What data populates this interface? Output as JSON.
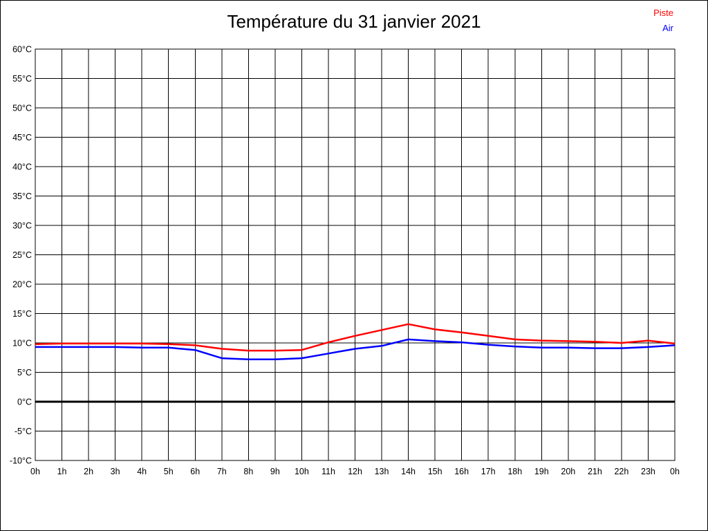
{
  "chart_data": {
    "type": "line",
    "title": "Température du 31 janvier 2021",
    "xlim": [
      0,
      24
    ],
    "ylim": [
      -10,
      60
    ],
    "grid": true,
    "legend_position": "top-right",
    "x": [
      0,
      1,
      2,
      3,
      4,
      5,
      6,
      7,
      8,
      9,
      10,
      11,
      12,
      13,
      14,
      15,
      16,
      17,
      18,
      19,
      20,
      21,
      22,
      23,
      24
    ],
    "x_tick_labels": [
      "0h",
      "1h",
      "2h",
      "3h",
      "4h",
      "5h",
      "6h",
      "7h",
      "8h",
      "9h",
      "10h",
      "11h",
      "12h",
      "13h",
      "14h",
      "15h",
      "16h",
      "17h",
      "18h",
      "19h",
      "20h",
      "21h",
      "22h",
      "23h",
      "0h"
    ],
    "y_ticks": [
      60,
      55,
      50,
      45,
      40,
      35,
      30,
      25,
      20,
      15,
      10,
      5,
      0,
      -5,
      -10
    ],
    "y_tick_suffix": "°C",
    "zero_line": {
      "value": 0,
      "color": "#000000",
      "width": 3
    },
    "grid_color": "#000000",
    "background_color": "#ffffff",
    "series": [
      {
        "name": "Piste",
        "color": "#ff0000",
        "values": [
          9.8,
          9.9,
          9.9,
          9.9,
          9.9,
          9.8,
          9.6,
          9.0,
          8.7,
          8.7,
          8.8,
          10.1,
          11.2,
          12.2,
          13.2,
          12.3,
          11.8,
          11.2,
          10.6,
          10.4,
          10.3,
          10.2,
          10.0,
          10.4,
          9.9
        ]
      },
      {
        "name": "Air",
        "color": "#0000ff",
        "values": [
          9.3,
          9.3,
          9.3,
          9.3,
          9.2,
          9.2,
          8.8,
          7.4,
          7.2,
          7.2,
          7.4,
          8.2,
          9.0,
          9.5,
          10.6,
          10.3,
          10.1,
          9.7,
          9.4,
          9.2,
          9.2,
          9.1,
          9.1,
          9.3,
          9.6
        ]
      }
    ]
  }
}
